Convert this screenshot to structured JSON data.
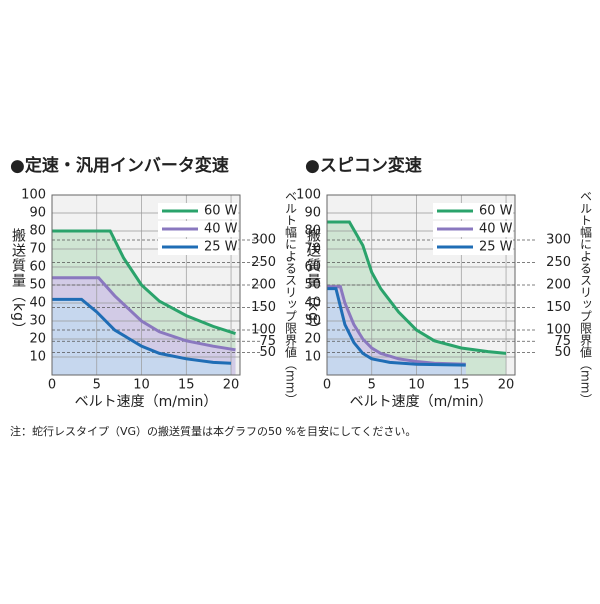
{
  "chart_data": [
    {
      "type": "line",
      "title": "●定速・汎用インバータ変速",
      "ylabel": "搬送質量（kg）",
      "xlabel": "ベルト速度（m/min）",
      "y2label": "ベルト幅によるスリップ限界値（mm）",
      "xlim": [
        0,
        21
      ],
      "ylim": [
        0,
        100
      ],
      "y2lim": [
        0,
        400
      ],
      "xticks": [
        0,
        5,
        10,
        15,
        20
      ],
      "yticks": [
        10,
        20,
        30,
        40,
        50,
        60,
        70,
        80,
        90,
        100
      ],
      "y2ticks": [
        50,
        75,
        100,
        150,
        200,
        250,
        300
      ],
      "grid": true,
      "legend": "upper right",
      "series": [
        {
          "name": "60 W",
          "color": "#2aa36b",
          "area_color": "#cfe5d3",
          "x": [
            0,
            6.5,
            8,
            10,
            12,
            15,
            18,
            20.5
          ],
          "values": [
            80,
            80,
            65,
            50,
            41,
            33,
            27,
            23
          ]
        },
        {
          "name": "40 W",
          "color": "#8a78bf",
          "area_color": "#d2cbe6",
          "x": [
            0,
            5.2,
            7,
            10,
            12,
            15,
            18,
            20.5
          ],
          "values": [
            54,
            54,
            44,
            30,
            24,
            19,
            16,
            14
          ]
        },
        {
          "name": "25 W",
          "color": "#1f6db5",
          "area_color": "#c6d7ee",
          "x": [
            0,
            3.3,
            5,
            7,
            10,
            12,
            15,
            18,
            20
          ],
          "values": [
            42,
            42,
            35,
            25,
            16,
            12,
            9,
            7,
            6.5
          ]
        }
      ]
    },
    {
      "type": "line",
      "title": "●スピコン変速",
      "ylabel": "搬送質量（kg）",
      "xlabel": "ベルト速度（m/min）",
      "y2label": "ベルト幅によるスリップ限界値（mm）",
      "xlim": [
        0,
        21
      ],
      "ylim": [
        0,
        100
      ],
      "y2lim": [
        0,
        400
      ],
      "xticks": [
        0,
        5,
        10,
        15,
        20
      ],
      "yticks": [
        10,
        20,
        30,
        40,
        50,
        60,
        70,
        80,
        90,
        100
      ],
      "y2ticks": [
        50,
        75,
        100,
        150,
        200,
        250,
        300
      ],
      "grid": true,
      "legend": "upper right",
      "series": [
        {
          "name": "60 W",
          "color": "#2aa36b",
          "area_color": "#cfe5d3",
          "x": [
            0,
            2.5,
            4,
            5,
            6,
            8,
            10,
            12,
            15,
            18,
            20
          ],
          "values": [
            85,
            85,
            72,
            57,
            48,
            35,
            25,
            19,
            15,
            13,
            12
          ]
        },
        {
          "name": "40 W",
          "color": "#8a78bf",
          "area_color": "#d2cbe6",
          "x": [
            0,
            1.5,
            2,
            3,
            4,
            5,
            6,
            8,
            10,
            12,
            15.5
          ],
          "values": [
            49,
            49,
            40,
            28,
            20,
            15,
            12,
            9,
            7.5,
            6.5,
            6
          ]
        },
        {
          "name": "25 W",
          "color": "#1f6db5",
          "area_color": "#c6d7ee",
          "x": [
            0,
            1,
            1.5,
            2,
            3,
            4,
            5,
            7,
            10,
            15.5
          ],
          "values": [
            48,
            48,
            38,
            28,
            18,
            12,
            9,
            7,
            6,
            5.5
          ]
        }
      ]
    }
  ],
  "note": "注：蛇行レスタイプ（VG）の搬送質量は本グラフの50 %を目安にしてください。"
}
